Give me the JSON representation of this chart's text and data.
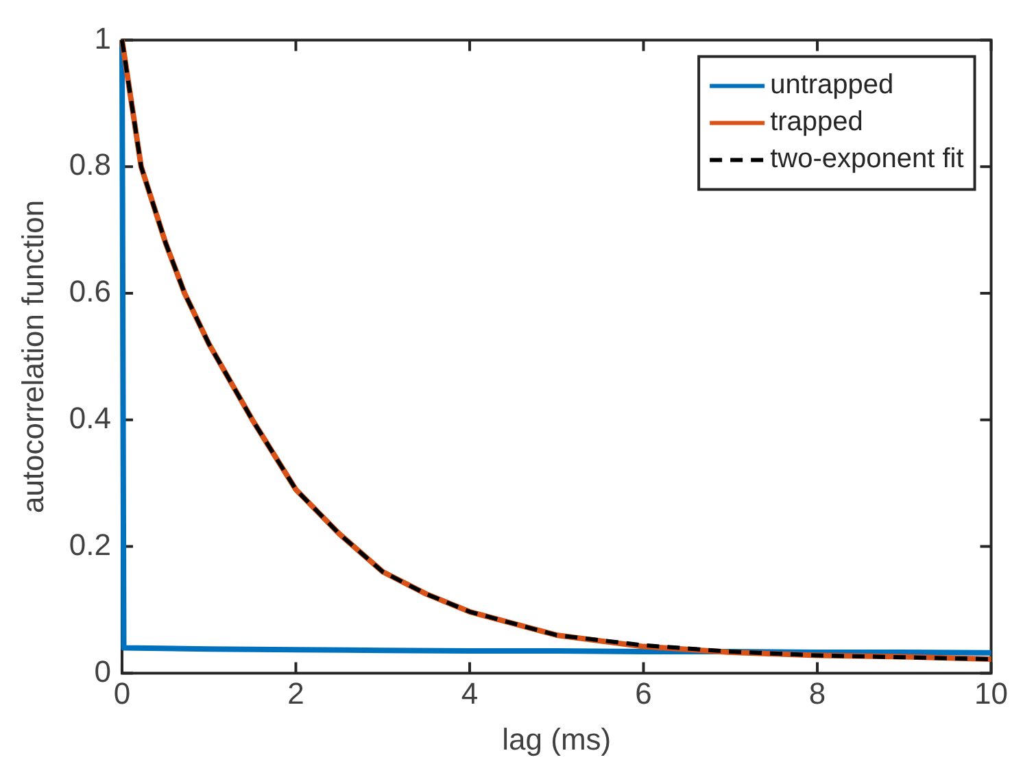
{
  "chart_data": {
    "type": "line",
    "xlabel": "lag (ms)",
    "ylabel": "autocorrelation function",
    "xlim": [
      0,
      10
    ],
    "xticks": [
      0,
      2,
      4,
      6,
      8,
      10
    ],
    "ylim": [
      0,
      1
    ],
    "yticks": [
      0,
      0.2,
      0.4,
      0.6,
      0.8,
      1
    ],
    "grid": false,
    "legend": "top right",
    "marker": "none",
    "series": [
      {
        "name": "untrapped",
        "color": "#0072bd",
        "line_style": "solid",
        "x": [
          0,
          0.02,
          1,
          2,
          3,
          4,
          5,
          6,
          7,
          8,
          9,
          10
        ],
        "values": [
          1,
          0.04,
          0.038,
          0.037,
          0.036,
          0.035,
          0.035,
          0.034,
          0.034,
          0.033,
          0.033,
          0.032
        ]
      },
      {
        "name": "trapped",
        "color": "#d95319",
        "line_style": "solid",
        "x": [
          0,
          0.22,
          0.5,
          0.72,
          1,
          1.5,
          2,
          2.5,
          3,
          3.5,
          4,
          5,
          6,
          7,
          8,
          9,
          10
        ],
        "values": [
          1,
          0.8,
          0.68,
          0.6,
          0.52,
          0.4,
          0.29,
          0.22,
          0.16,
          0.125,
          0.097,
          0.06,
          0.042,
          0.033,
          0.028,
          0.026,
          0.022
        ]
      },
      {
        "name": "two-exponent fit",
        "color": "#000000",
        "line_style": "dashed",
        "x": [
          0,
          0.22,
          0.5,
          0.72,
          1,
          1.5,
          2,
          2.5,
          3,
          3.5,
          4,
          5,
          6,
          7,
          8,
          9,
          10
        ],
        "values": [
          1,
          0.8,
          0.68,
          0.6,
          0.52,
          0.4,
          0.29,
          0.22,
          0.16,
          0.125,
          0.097,
          0.06,
          0.044,
          0.034,
          0.028,
          0.025,
          0.022
        ]
      }
    ]
  }
}
